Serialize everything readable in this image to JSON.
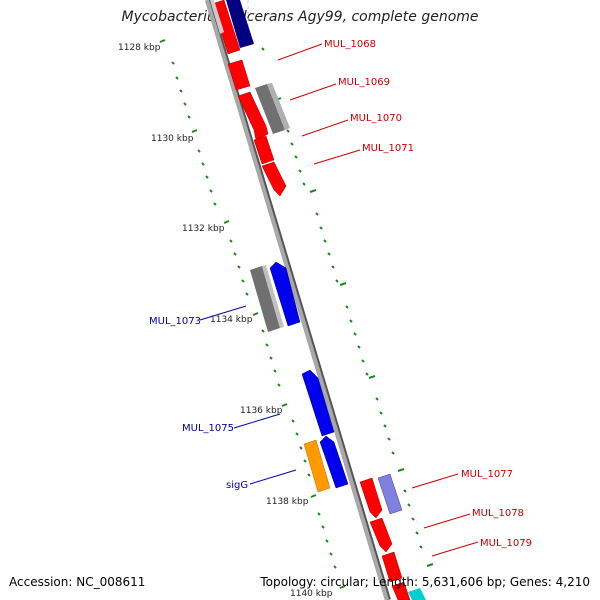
{
  "header": {
    "title": "Mycobacterium ulcerans Agy99, complete genome"
  },
  "footer": {
    "accession": "Accession: NC_008611",
    "summary": "Topology: circular; Length: 5,631,606 bp; Genes: 4,210"
  },
  "ticks": [
    {
      "label": "1128 kbp"
    },
    {
      "label": "1130 kbp"
    },
    {
      "label": "1132 kbp"
    },
    {
      "label": "1134 kbp"
    },
    {
      "label": "1136 kbp"
    },
    {
      "label": "1138 kbp"
    },
    {
      "label": "1140 kbp"
    }
  ],
  "gene_labels": {
    "mul_1068": "MUL_1068",
    "mul_1069": "MUL_1069",
    "mul_1070": "MUL_1070",
    "mul_1071": "MUL_1071",
    "mul_1073": "MUL_1073",
    "mul_1075": "MUL_1075",
    "sigG": "sigG",
    "mul_1077": "MUL_1077",
    "mul_1078": "MUL_1078",
    "mul_1079": "MUL_1079"
  },
  "colors": {
    "cds_red": "#ff0000",
    "cds_dark_red": "#b00000",
    "cds_blue": "#0000ee",
    "cds_navy": "#000080",
    "cds_grey": "#707070",
    "cds_orange": "#ff9900",
    "cds_lavender": "#8080e0",
    "cds_cyan": "#00d0d0",
    "tick_green": "#1a8a1a",
    "label_red": "#cc0000",
    "label_blue": "#0000aa",
    "backbone": "#888888"
  }
}
